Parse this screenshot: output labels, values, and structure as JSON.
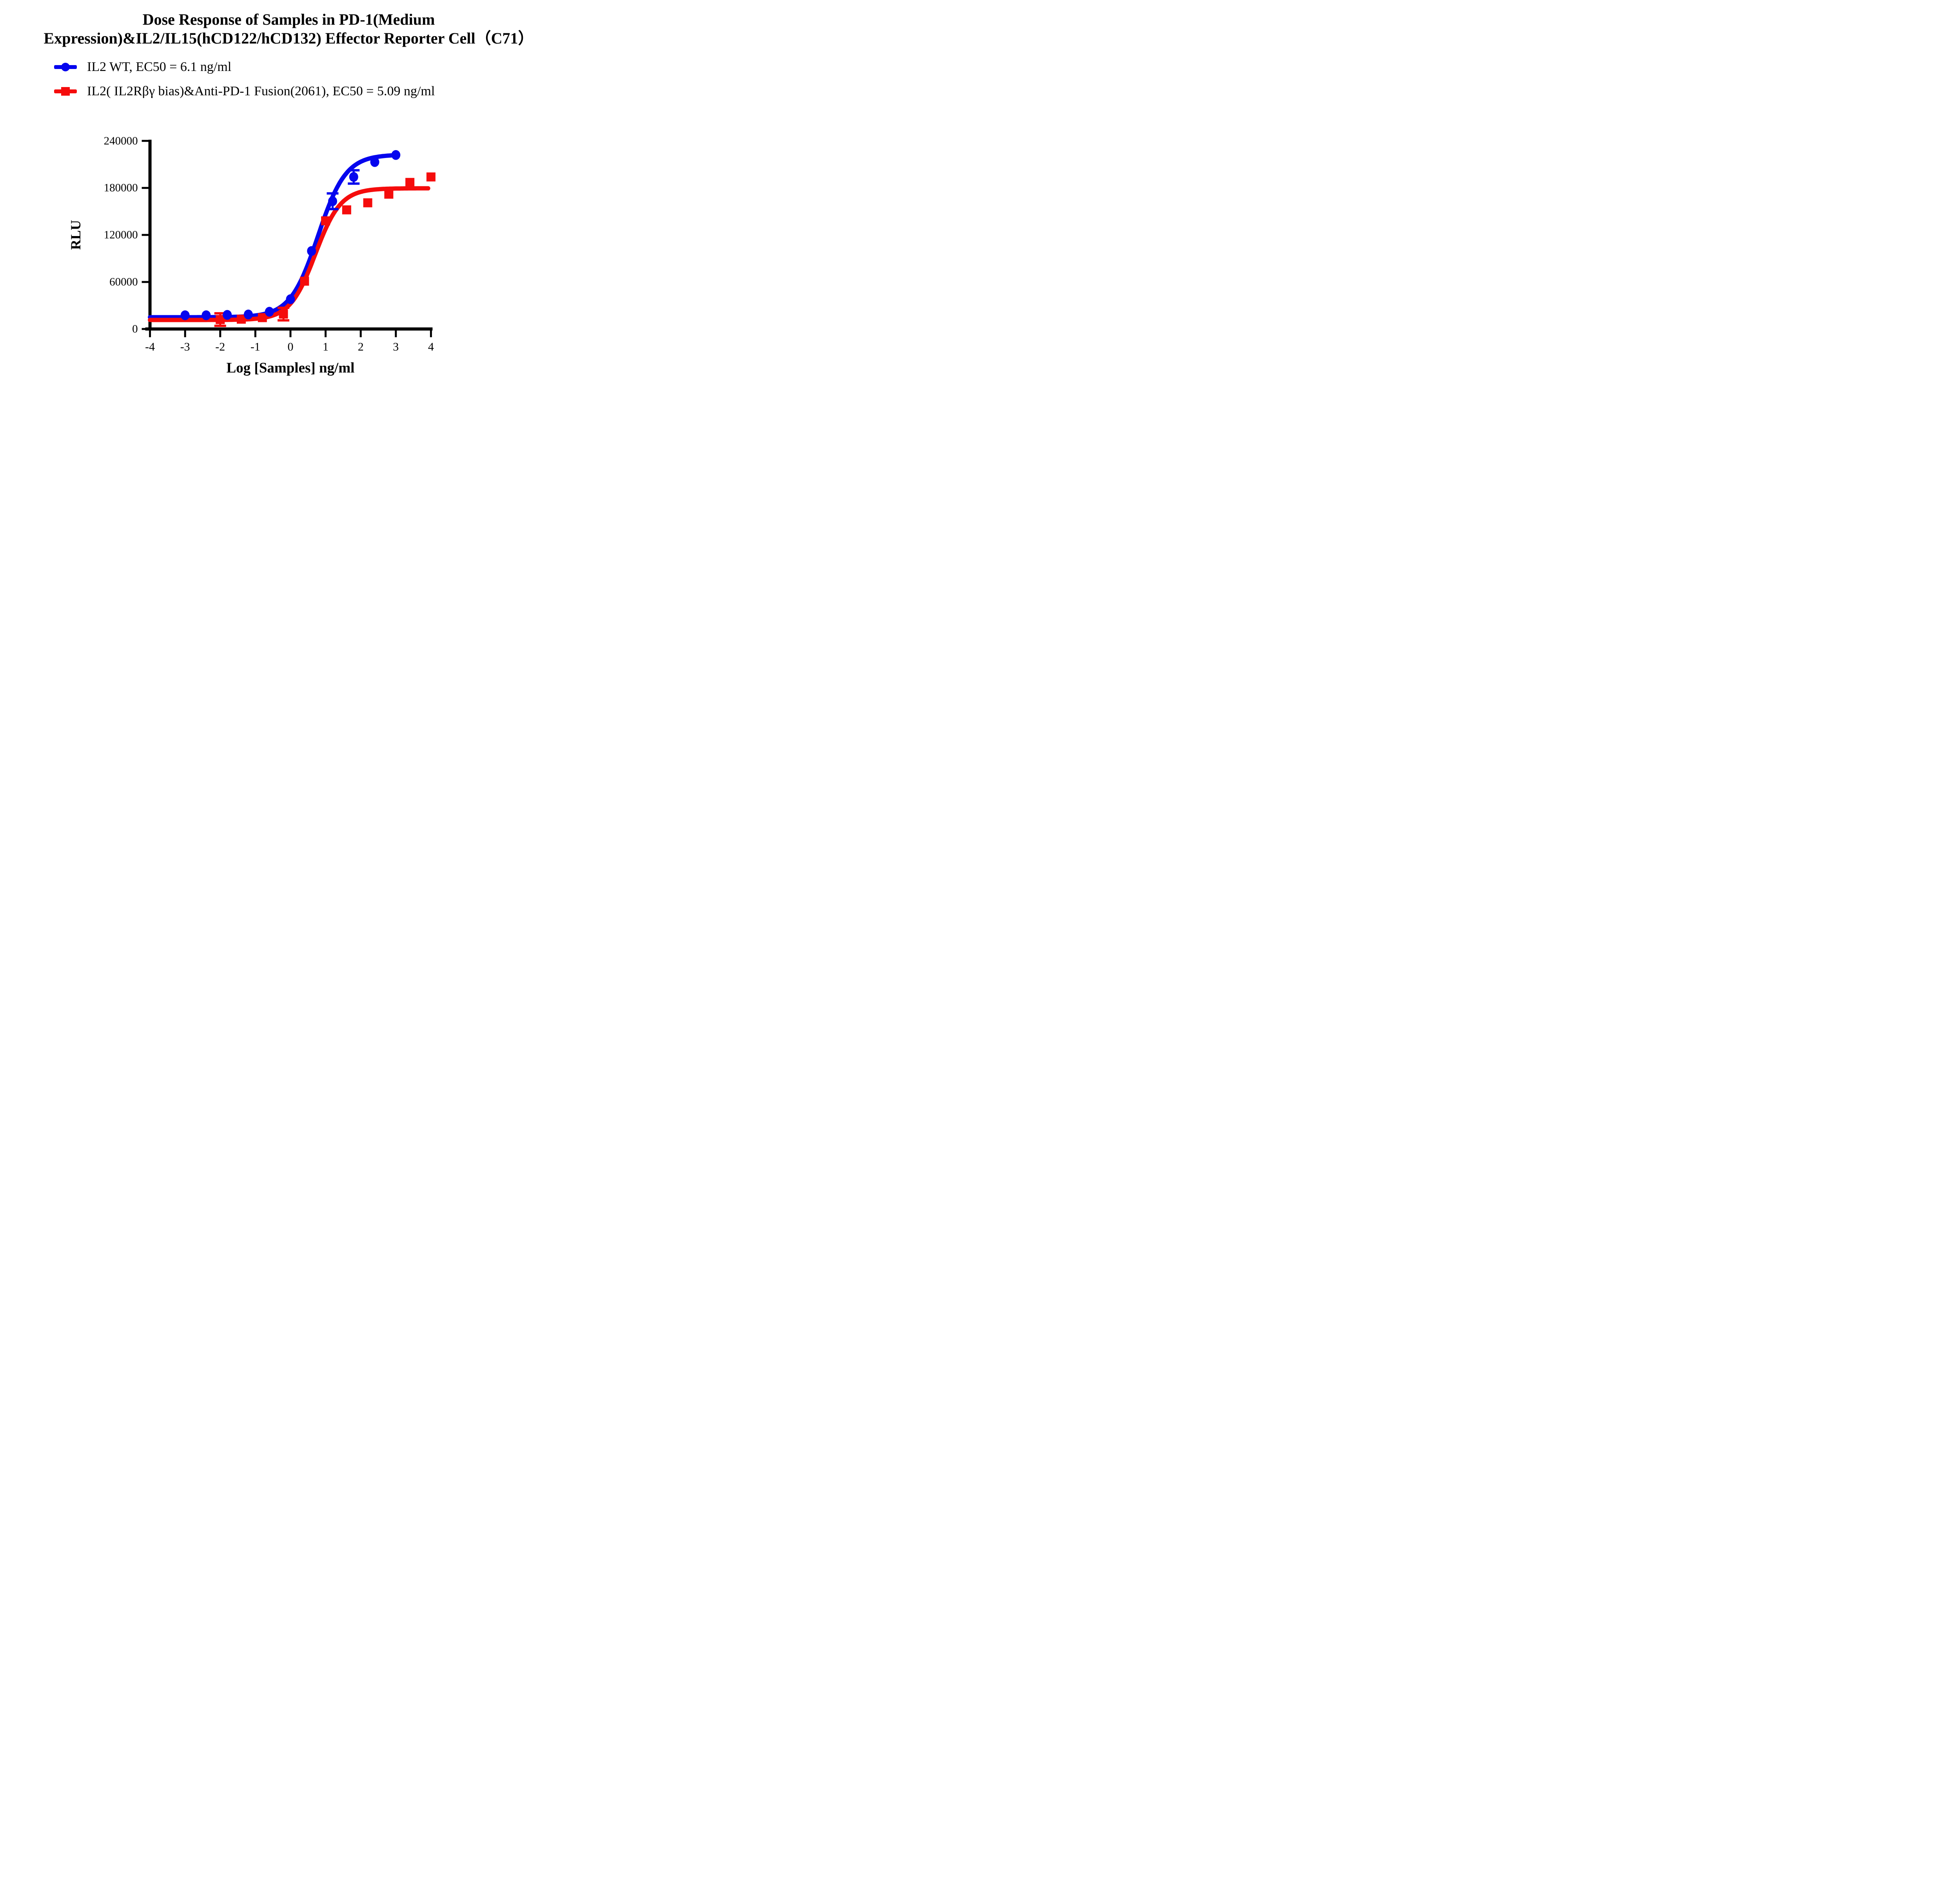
{
  "title": {
    "line1": "Dose Response of Samples in PD-1(Medium",
    "line2": "Expression)&IL2/IL15(hCD122/hCD132) Effector Reporter Cell（C71）"
  },
  "colors": {
    "blue": "#0505ee",
    "red": "#f50c0c",
    "axis": "#000000"
  },
  "chart_data": {
    "type": "scatter",
    "title": "Dose Response of Samples in PD-1(Medium Expression)&IL2/IL15(hCD122/hCD132) Effector Reporter Cell（C71）",
    "xlabel": "Log [Samples] ng/ml",
    "ylabel": "RLU",
    "xlim": [
      -4,
      4
    ],
    "ylim": [
      0,
      240000
    ],
    "x_ticks": [
      -4,
      -3,
      -2,
      -1,
      0,
      1,
      2,
      3,
      4
    ],
    "y_ticks": [
      0,
      60000,
      120000,
      180000,
      240000
    ],
    "grid": false,
    "legend_position": "top-left",
    "series": [
      {
        "name": "IL2 WT",
        "legend_label": "IL2 WT, EC50 = 6.1 ng/ml",
        "ec50_ngml": 6.1,
        "marker": "circle",
        "color": "#0505ee",
        "x": [
          -3,
          -2.4,
          -1.8,
          -1.2,
          -0.6,
          0,
          0.6,
          1.2,
          1.8,
          2.4,
          3
        ],
        "y": [
          17500,
          17500,
          18000,
          18500,
          22000,
          38000,
          99500,
          163000,
          194000,
          213000,
          222000
        ],
        "yerr": [
          0,
          0,
          0,
          0,
          0,
          0,
          0,
          10000,
          8500,
          0,
          0
        ],
        "fit": {
          "bottom": 15000,
          "top": 222500,
          "logec50": 0.785,
          "hill": 1.1,
          "xmin": -4,
          "xmax": 3.0
        }
      },
      {
        "name": "IL2( IL2Rβγ bias)&Anti-PD-1 Fusion(2061)",
        "legend_label": "IL2( IL2Rβγ bias)&Anti-PD-1 Fusion(2061), EC50 = 5.09 ng/ml",
        "ec50_ngml": 5.09,
        "marker": "square",
        "color": "#f50c0c",
        "x": [
          -2,
          -1.4,
          -0.8,
          -0.2,
          0.4,
          1,
          1.6,
          2.2,
          2.8,
          3.4,
          4
        ],
        "y": [
          12000,
          12500,
          14500,
          19000,
          61000,
          138000,
          152000,
          161000,
          172000,
          187000,
          194000
        ],
        "yerr": [
          8000,
          0,
          0,
          8000,
          0,
          0,
          0,
          0,
          0,
          0,
          0
        ],
        "fit": {
          "bottom": 11500,
          "top": 179500,
          "logec50": 0.707,
          "hill": 1.2,
          "xmin": -4,
          "xmax": 3.95
        }
      }
    ]
  }
}
